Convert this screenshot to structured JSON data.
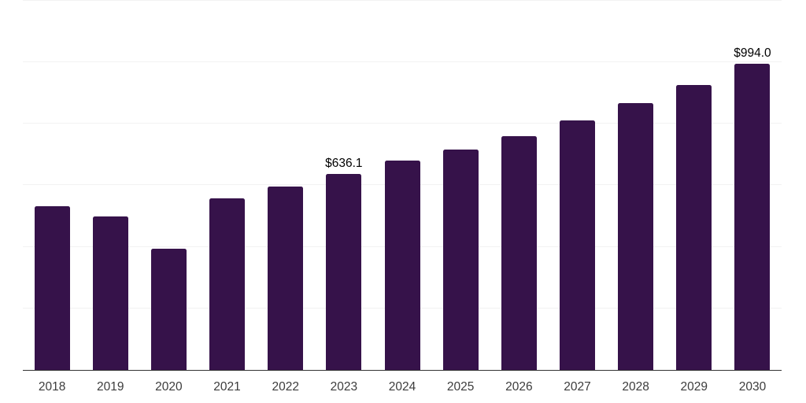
{
  "page": {
    "background": "#ffffff"
  },
  "chart_data": {
    "type": "bar",
    "title": "",
    "subtitle": "",
    "xlabel": "",
    "ylabel": "",
    "categories": [
      "2018",
      "2019",
      "2020",
      "2021",
      "2022",
      "2023",
      "2024",
      "2025",
      "2026",
      "2027",
      "2028",
      "2029",
      "2030"
    ],
    "values": [
      531,
      498,
      395,
      558,
      597,
      636.1,
      681,
      717,
      759,
      811,
      866,
      927,
      994.0
    ],
    "data_labels": [
      {
        "index": 5,
        "text": "$636.1"
      },
      {
        "index": 12,
        "text": "$994.0"
      }
    ],
    "value_prefix": "$",
    "ylim": [
      0,
      1200
    ],
    "gridline_values": [
      200,
      400,
      600,
      800,
      1000,
      1200
    ],
    "grid": "on",
    "legend": "none",
    "colors": {
      "bar": "#36124a",
      "gridline": "#f2f2f2",
      "axis_line": "#333333",
      "tick_label": "#3c3c3c",
      "data_label": "#000000",
      "background": "#ffffff"
    }
  }
}
